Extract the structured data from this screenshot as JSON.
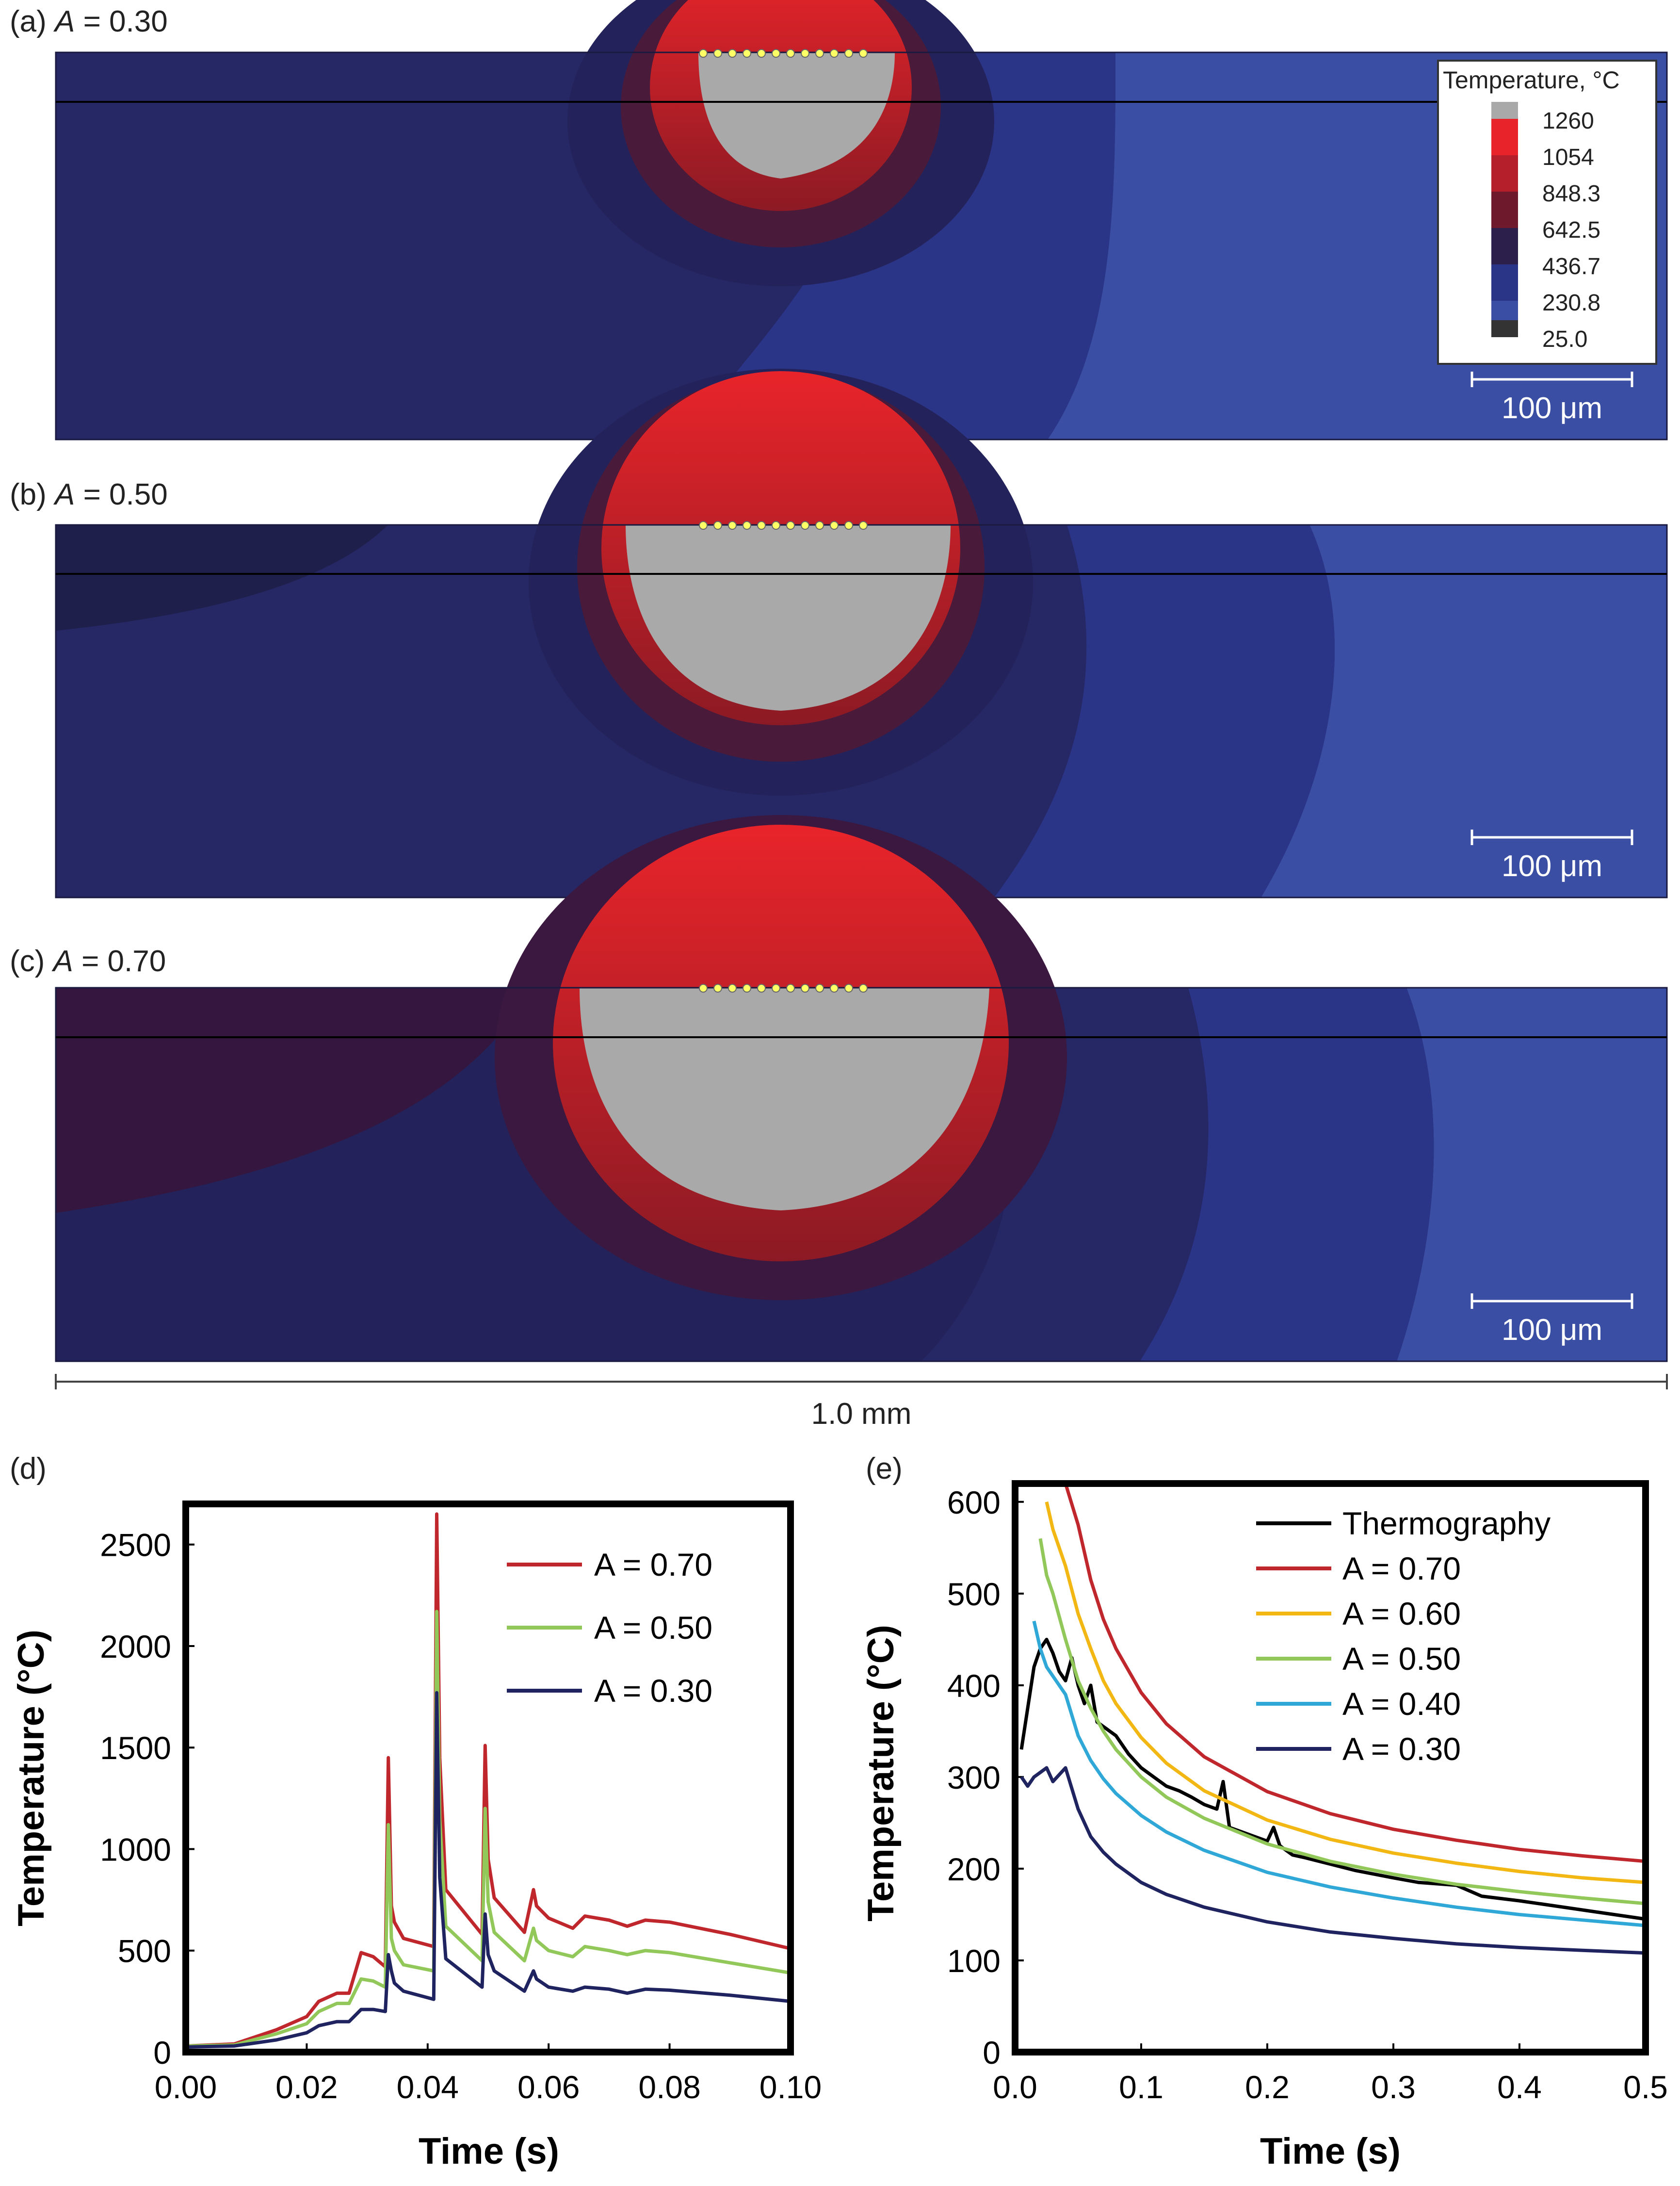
{
  "panels": [
    {
      "label": "(a)",
      "a_symbol": "A",
      "a_value": "= 0.30",
      "scalebar_label": "100 μm"
    },
    {
      "label": "(b)",
      "a_symbol": "A",
      "a_value": "= 0.50",
      "scalebar_label": "100 μm"
    },
    {
      "label": "(c)",
      "a_symbol": "A",
      "a_value": "= 0.70",
      "scalebar_label": "100 μm"
    }
  ],
  "width_label": "1.0 mm",
  "colorbar": {
    "title": "Temperature, °C",
    "levels": [
      "1260",
      "1054",
      "848.3",
      "642.5",
      "436.7",
      "230.8",
      "25.0"
    ]
  },
  "colors": {
    "melt": "#a9a9a9",
    "hot": "#e8242a",
    "substrate_dark": "#24225a",
    "substrate_mid": "#2b3588",
    "substrate_light": "#3a4ea4",
    "track": "#ffff66"
  },
  "chart_data": [
    {
      "id": "d",
      "label": "(d)",
      "type": "line",
      "xlabel": "Time (s)",
      "ylabel": "Temperature (°C)",
      "xlim": [
        0,
        0.1
      ],
      "ylim": [
        0,
        2700
      ],
      "xticks": [
        "0.00",
        "0.02",
        "0.04",
        "0.06",
        "0.08",
        "0.10"
      ],
      "yticks": [
        "0",
        "500",
        "1000",
        "1500",
        "2000",
        "2500"
      ],
      "legend": [
        "A = 0.70",
        "A = 0.50",
        "A = 0.30"
      ],
      "series": [
        {
          "name": "A = 0.70",
          "color": "#c0272d",
          "x": [
            0,
            0.008,
            0.015,
            0.02,
            0.022,
            0.025,
            0.027,
            0.029,
            0.031,
            0.033,
            0.0335,
            0.034,
            0.0345,
            0.036,
            0.041,
            0.0415,
            0.042,
            0.043,
            0.049,
            0.0495,
            0.05,
            0.051,
            0.056,
            0.0575,
            0.058,
            0.06,
            0.064,
            0.066,
            0.07,
            0.073,
            0.076,
            0.08,
            0.09,
            0.1
          ],
          "y": [
            30,
            40,
            110,
            175,
            250,
            290,
            290,
            490,
            470,
            420,
            1450,
            720,
            640,
            560,
            520,
            2650,
            1450,
            800,
            580,
            1510,
            950,
            760,
            590,
            800,
            720,
            660,
            610,
            670,
            650,
            620,
            650,
            640,
            580,
            510
          ]
        },
        {
          "name": "A = 0.50",
          "color": "#92c85a",
          "x": [
            0,
            0.008,
            0.015,
            0.02,
            0.022,
            0.025,
            0.027,
            0.029,
            0.031,
            0.033,
            0.0335,
            0.034,
            0.0345,
            0.036,
            0.041,
            0.0415,
            0.042,
            0.043,
            0.049,
            0.0495,
            0.05,
            0.051,
            0.056,
            0.0575,
            0.058,
            0.06,
            0.064,
            0.066,
            0.07,
            0.073,
            0.076,
            0.08,
            0.09,
            0.1
          ],
          "y": [
            30,
            35,
            90,
            140,
            200,
            240,
            240,
            360,
            350,
            320,
            1120,
            560,
            500,
            430,
            400,
            2170,
            1150,
            620,
            450,
            1200,
            740,
            590,
            450,
            610,
            550,
            500,
            470,
            520,
            500,
            480,
            500,
            490,
            440,
            390
          ]
        },
        {
          "name": "A = 0.30",
          "color": "#1f2460",
          "x": [
            0,
            0.008,
            0.015,
            0.02,
            0.022,
            0.025,
            0.027,
            0.029,
            0.031,
            0.033,
            0.0335,
            0.034,
            0.0345,
            0.036,
            0.041,
            0.0415,
            0.042,
            0.043,
            0.049,
            0.0495,
            0.05,
            0.051,
            0.056,
            0.0575,
            0.058,
            0.06,
            0.064,
            0.066,
            0.07,
            0.073,
            0.076,
            0.08,
            0.09,
            0.1
          ],
          "y": [
            25,
            30,
            60,
            95,
            130,
            150,
            150,
            210,
            210,
            200,
            480,
            400,
            340,
            300,
            260,
            1770,
            860,
            460,
            320,
            680,
            480,
            400,
            300,
            400,
            360,
            320,
            300,
            320,
            310,
            290,
            310,
            305,
            280,
            250
          ]
        }
      ]
    },
    {
      "id": "e",
      "label": "(e)",
      "type": "line",
      "xlabel": "Time (s)",
      "ylabel": "Temperature (°C)",
      "xlim": [
        0,
        0.5
      ],
      "ylim": [
        0,
        620
      ],
      "xticks": [
        "0.0",
        "0.1",
        "0.2",
        "0.3",
        "0.4",
        "0.5"
      ],
      "yticks": [
        "0",
        "100",
        "200",
        "300",
        "400",
        "500",
        "600"
      ],
      "legend": [
        "Thermography",
        "A = 0.70",
        "A = 0.60",
        "A = 0.50",
        "A = 0.40",
        "A = 0.30"
      ],
      "series": [
        {
          "name": "Thermography",
          "color": "#000000",
          "x": [
            0.005,
            0.015,
            0.02,
            0.025,
            0.03,
            0.035,
            0.04,
            0.045,
            0.05,
            0.055,
            0.06,
            0.065,
            0.07,
            0.08,
            0.09,
            0.1,
            0.11,
            0.12,
            0.13,
            0.14,
            0.15,
            0.16,
            0.165,
            0.17,
            0.18,
            0.19,
            0.2,
            0.205,
            0.21,
            0.22,
            0.23,
            0.25,
            0.27,
            0.3,
            0.32,
            0.35,
            0.37,
            0.4,
            0.45,
            0.5
          ],
          "y": [
            330,
            420,
            440,
            450,
            435,
            415,
            405,
            430,
            400,
            380,
            400,
            360,
            355,
            345,
            325,
            310,
            300,
            290,
            285,
            278,
            270,
            265,
            295,
            245,
            240,
            235,
            230,
            245,
            225,
            215,
            212,
            205,
            198,
            190,
            185,
            182,
            170,
            165,
            155,
            145
          ]
        },
        {
          "name": "A = 0.70",
          "color": "#c0272d",
          "x": [
            0.04,
            0.05,
            0.06,
            0.07,
            0.08,
            0.1,
            0.12,
            0.15,
            0.2,
            0.25,
            0.3,
            0.35,
            0.4,
            0.45,
            0.5
          ],
          "y": [
            620,
            575,
            515,
            472,
            440,
            392,
            358,
            322,
            284,
            260,
            243,
            231,
            221,
            214,
            208
          ]
        },
        {
          "name": "A = 0.60",
          "color": "#f2b713",
          "x": [
            0.025,
            0.03,
            0.04,
            0.05,
            0.06,
            0.07,
            0.08,
            0.1,
            0.12,
            0.15,
            0.2,
            0.25,
            0.3,
            0.35,
            0.4,
            0.45,
            0.5
          ],
          "y": [
            600,
            570,
            530,
            478,
            440,
            405,
            380,
            343,
            315,
            285,
            253,
            232,
            217,
            206,
            197,
            190,
            185
          ]
        },
        {
          "name": "A = 0.50",
          "color": "#92c85a",
          "x": [
            0.02,
            0.025,
            0.03,
            0.04,
            0.05,
            0.06,
            0.07,
            0.08,
            0.1,
            0.12,
            0.15,
            0.2,
            0.25,
            0.3,
            0.35,
            0.4,
            0.45,
            0.5
          ],
          "y": [
            560,
            520,
            500,
            450,
            405,
            375,
            350,
            330,
            300,
            278,
            255,
            227,
            208,
            194,
            183,
            175,
            168,
            162
          ]
        },
        {
          "name": "A = 0.40",
          "color": "#2fa8d8",
          "x": [
            0.015,
            0.02,
            0.025,
            0.03,
            0.04,
            0.05,
            0.06,
            0.07,
            0.08,
            0.1,
            0.12,
            0.15,
            0.2,
            0.25,
            0.3,
            0.35,
            0.4,
            0.45,
            0.5
          ],
          "y": [
            470,
            440,
            420,
            410,
            390,
            345,
            318,
            298,
            282,
            258,
            240,
            220,
            196,
            180,
            168,
            158,
            150,
            144,
            138
          ]
        },
        {
          "name": "A = 0.30",
          "color": "#1f2460",
          "x": [
            0.005,
            0.01,
            0.015,
            0.02,
            0.025,
            0.03,
            0.04,
            0.05,
            0.06,
            0.07,
            0.08,
            0.1,
            0.12,
            0.15,
            0.2,
            0.25,
            0.3,
            0.35,
            0.4,
            0.45,
            0.5
          ],
          "y": [
            300,
            290,
            300,
            305,
            310,
            295,
            310,
            265,
            235,
            218,
            205,
            185,
            172,
            158,
            142,
            131,
            124,
            118,
            114,
            111,
            108
          ]
        }
      ]
    }
  ]
}
